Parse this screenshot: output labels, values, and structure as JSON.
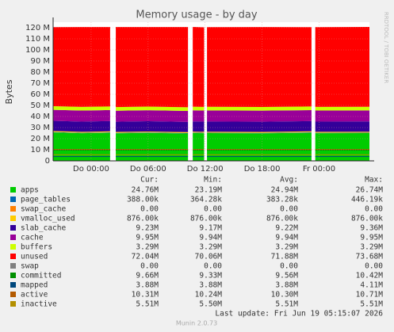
{
  "chart_data": {
    "type": "area",
    "title": "Memory usage - by day",
    "ylabel": "Bytes",
    "watermark": "RRDTOOL / TOBI OETIKER",
    "grid": true,
    "x": [
      -4,
      -1,
      2,
      2.3,
      2.6,
      6,
      10.2,
      10.45,
      10.7,
      11.9,
      12.05,
      12.2,
      18,
      23.2,
      23.4,
      23.6,
      29.3
    ],
    "xlim": [
      -4,
      29.3
    ],
    "xticks": [
      {
        "value": 0,
        "label": "Do 00:00"
      },
      {
        "value": 6,
        "label": "Do 06:00"
      },
      {
        "value": 12,
        "label": "Do 12:00"
      },
      {
        "value": 18,
        "label": "Do 18:00"
      },
      {
        "value": 24,
        "label": "Fr 00:00"
      }
    ],
    "ylim": [
      0,
      125
    ],
    "yticks": [
      {
        "value": 0,
        "label": "0"
      },
      {
        "value": 10,
        "label": "10 M"
      },
      {
        "value": 20,
        "label": "20 M"
      },
      {
        "value": 30,
        "label": "30 M"
      },
      {
        "value": 40,
        "label": "40 M"
      },
      {
        "value": 50,
        "label": "50 M"
      },
      {
        "value": 60,
        "label": "60 M"
      },
      {
        "value": 70,
        "label": "70 M"
      },
      {
        "value": 80,
        "label": "80 M"
      },
      {
        "value": 90,
        "label": "90 M"
      },
      {
        "value": 100,
        "label": "100 M"
      },
      {
        "value": 110,
        "label": "110 M"
      },
      {
        "value": 120,
        "label": "120 M"
      }
    ],
    "legend_columns": [
      "Cur:",
      "Min:",
      "Avg:",
      "Max:"
    ],
    "series": [
      {
        "name": "apps",
        "color": "#00cc00",
        "kind": "stack",
        "stats": [
          "24.76M",
          "23.19M",
          "24.94M",
          "26.74M"
        ],
        "values": [
          25.6,
          24.9,
          25.3,
          null,
          24.8,
          25.2,
          24.6,
          null,
          25.1,
          24.9,
          null,
          25.0,
          24.8,
          25.3,
          null,
          24.9,
          25.0
        ]
      },
      {
        "name": "page_tables",
        "color": "#0066b3",
        "kind": "stack",
        "stats": [
          "388.00k",
          "364.28k",
          "383.28k",
          "446.19k"
        ],
        "values": [
          0.39,
          0.39,
          0.39,
          null,
          0.39,
          0.39,
          0.39,
          null,
          0.39,
          0.39,
          null,
          0.39,
          0.39,
          0.39,
          null,
          0.39,
          0.39
        ]
      },
      {
        "name": "swap_cache",
        "color": "#ff8000",
        "kind": "stack",
        "stats": [
          "0.00",
          "0.00",
          "0.00",
          "0.00"
        ],
        "values": [
          0,
          0,
          0,
          null,
          0,
          0,
          0,
          null,
          0,
          0,
          null,
          0,
          0,
          0,
          null,
          0,
          0
        ]
      },
      {
        "name": "vmalloc_used",
        "color": "#ffcc00",
        "kind": "stack",
        "stats": [
          "876.00k",
          "876.00k",
          "876.00k",
          "876.00k"
        ],
        "values": [
          0.88,
          0.88,
          0.88,
          null,
          0.88,
          0.88,
          0.88,
          null,
          0.88,
          0.88,
          null,
          0.88,
          0.88,
          0.88,
          null,
          0.88,
          0.88
        ]
      },
      {
        "name": "slab_cache",
        "color": "#330099",
        "kind": "stack",
        "stats": [
          "9.23M",
          "9.17M",
          "9.22M",
          "9.36M"
        ],
        "values": [
          9.2,
          9.22,
          9.25,
          null,
          9.2,
          9.21,
          9.23,
          null,
          9.2,
          9.22,
          null,
          9.21,
          9.24,
          9.22,
          null,
          9.23,
          9.23
        ]
      },
      {
        "name": "cache",
        "color": "#990099",
        "kind": "stack",
        "stats": [
          "9.95M",
          "9.94M",
          "9.94M",
          "9.95M"
        ],
        "values": [
          9.94,
          9.94,
          9.94,
          null,
          9.94,
          9.94,
          9.94,
          null,
          9.94,
          9.94,
          null,
          9.94,
          9.94,
          9.94,
          null,
          9.94,
          9.94
        ]
      },
      {
        "name": "buffers",
        "color": "#ccff00",
        "kind": "stack",
        "stats": [
          "3.29M",
          "3.29M",
          "3.29M",
          "3.29M"
        ],
        "values": [
          3.29,
          3.29,
          3.29,
          null,
          3.29,
          3.29,
          3.29,
          null,
          3.29,
          3.29,
          null,
          3.29,
          3.29,
          3.29,
          null,
          3.29,
          3.29
        ]
      },
      {
        "name": "unused",
        "color": "#ff0000",
        "kind": "stack",
        "stats": [
          "72.04M",
          "70.06M",
          "71.88M",
          "73.68M"
        ],
        "values": [
          71.2,
          72.0,
          71.6,
          null,
          72.1,
          71.7,
          72.3,
          null,
          71.9,
          71.8,
          null,
          71.8,
          72.1,
          71.5,
          null,
          71.9,
          72.0
        ]
      },
      {
        "name": "swap",
        "color": "#808080",
        "kind": "stack",
        "stats": [
          "0.00",
          "0.00",
          "0.00",
          "0.00"
        ],
        "values": [
          0,
          0,
          0,
          null,
          0,
          0,
          0,
          null,
          0,
          0,
          null,
          0,
          0,
          0,
          null,
          0,
          0
        ]
      },
      {
        "name": "committed",
        "color": "#008f00",
        "kind": "line",
        "stats": [
          "9.66M",
          "9.33M",
          "9.56M",
          "10.42M"
        ],
        "values": [
          9.6,
          9.6,
          9.6,
          null,
          9.6,
          9.6,
          9.6,
          null,
          9.6,
          9.6,
          null,
          9.6,
          9.6,
          9.6,
          null,
          9.6,
          9.6
        ]
      },
      {
        "name": "mapped",
        "color": "#00487d",
        "kind": "line",
        "stats": [
          "3.88M",
          "3.88M",
          "3.88M",
          "4.11M"
        ],
        "values": [
          3.88,
          3.88,
          3.88,
          null,
          3.88,
          3.88,
          3.88,
          null,
          3.88,
          3.88,
          null,
          3.88,
          3.88,
          3.88,
          null,
          3.88,
          3.88
        ]
      },
      {
        "name": "active",
        "color": "#b35a00",
        "kind": "line",
        "stats": [
          "10.31M",
          "10.24M",
          "10.30M",
          "10.71M"
        ],
        "values": [
          10.3,
          10.3,
          10.3,
          null,
          10.3,
          10.3,
          10.3,
          null,
          10.3,
          10.3,
          null,
          10.3,
          10.3,
          10.3,
          null,
          10.3,
          10.3
        ]
      },
      {
        "name": "inactive",
        "color": "#b38f00",
        "kind": "line",
        "stats": [
          "5.51M",
          "5.50M",
          "5.51M",
          "5.51M"
        ],
        "values": [
          5.51,
          5.51,
          5.51,
          null,
          5.51,
          5.51,
          5.51,
          null,
          5.51,
          5.51,
          null,
          5.51,
          5.51,
          5.51,
          null,
          5.51,
          5.51
        ]
      }
    ],
    "last_update": "Last update: Fri Jun 19 05:15:07 2026",
    "footer": "Munin 2.0.73"
  }
}
